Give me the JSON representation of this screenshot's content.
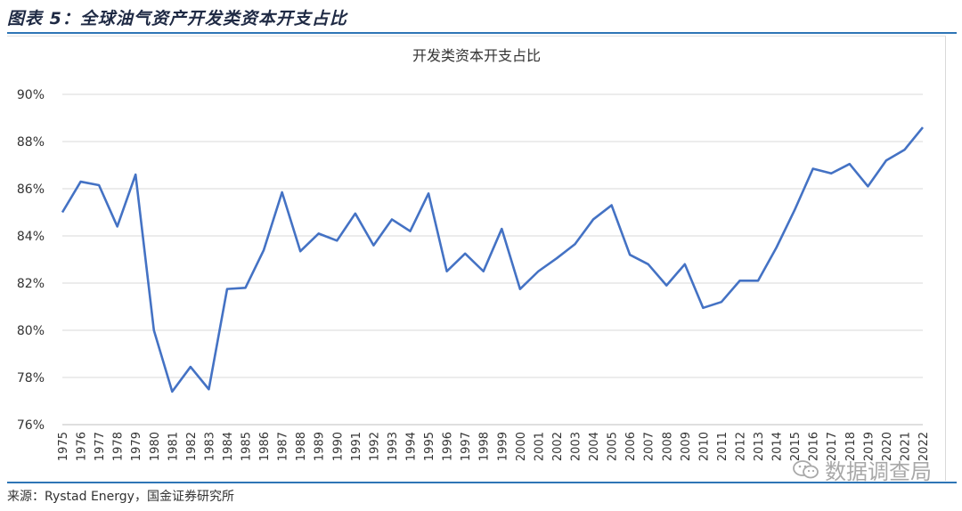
{
  "figure": {
    "title": "图表 5：全球油气资产开发类资本开支占比",
    "source": "来源：Rystad Energy，国金证券研究所"
  },
  "watermark": {
    "text": "数据调查局",
    "icon": "wechat-icon"
  },
  "colors": {
    "line": "#4472c4",
    "grid": "#d9d9d9",
    "rule": "#2e75b6"
  },
  "chart_data": {
    "type": "line",
    "title": "开发类资本开支占比",
    "xlabel": "",
    "ylabel": "",
    "ylim": [
      76,
      90
    ],
    "yticks": [
      76,
      78,
      80,
      82,
      84,
      86,
      88,
      90
    ],
    "ytick_suffix": "%",
    "grid": true,
    "legend": "none",
    "categories": [
      "1975",
      "1976",
      "1977",
      "1978",
      "1979",
      "1980",
      "1981",
      "1982",
      "1983",
      "1984",
      "1985",
      "1986",
      "1987",
      "1988",
      "1989",
      "1990",
      "1991",
      "1992",
      "1993",
      "1994",
      "1995",
      "1996",
      "1997",
      "1998",
      "1999",
      "2000",
      "2001",
      "2002",
      "2003",
      "2004",
      "2005",
      "2006",
      "2007",
      "2008",
      "2009",
      "2010",
      "2011",
      "2012",
      "2013",
      "2014",
      "2015",
      "2016",
      "2017",
      "2018",
      "2019",
      "2020",
      "2021",
      "2022"
    ],
    "values": [
      85.0,
      86.3,
      86.15,
      84.4,
      86.6,
      80.0,
      77.4,
      78.45,
      77.5,
      81.75,
      81.8,
      83.4,
      85.85,
      83.35,
      84.1,
      83.8,
      84.95,
      83.6,
      84.7,
      84.2,
      85.8,
      82.5,
      83.25,
      82.5,
      84.3,
      81.75,
      82.5,
      83.05,
      83.65,
      84.7,
      85.3,
      83.2,
      82.8,
      81.9,
      82.8,
      80.95,
      81.2,
      82.1,
      82.1,
      83.5,
      85.1,
      86.85,
      86.65,
      87.05,
      86.1,
      87.2,
      87.65,
      88.6
    ]
  }
}
